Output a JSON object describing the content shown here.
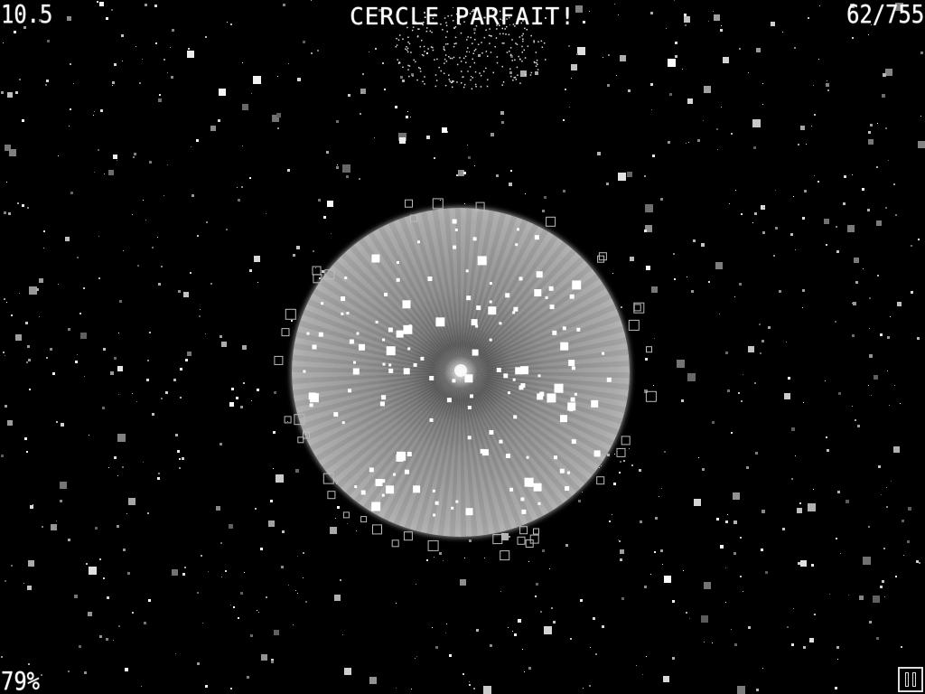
{
  "hud": {
    "timer": "10.5",
    "message": "CERCLE PARFAIT!",
    "score": "62/755",
    "completion": "79%"
  },
  "colors": {
    "background": "#000000",
    "text": "#ffffff",
    "planet_rim": "#ffffff",
    "planet_core": "#5a5a5a",
    "stars": "#ffffff"
  },
  "icons": {
    "pause": "pause-icon"
  }
}
